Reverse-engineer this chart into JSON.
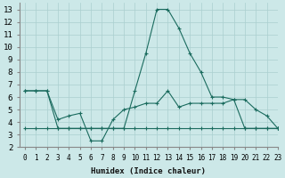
{
  "xlabel": "Humidex (Indice chaleur)",
  "xlim": [
    -0.5,
    23
  ],
  "ylim": [
    2,
    13.5
  ],
  "yticks": [
    2,
    3,
    4,
    5,
    6,
    7,
    8,
    9,
    10,
    11,
    12,
    13
  ],
  "xticks": [
    0,
    1,
    2,
    3,
    4,
    5,
    6,
    7,
    8,
    9,
    10,
    11,
    12,
    13,
    14,
    15,
    16,
    17,
    18,
    19,
    20,
    21,
    22,
    23
  ],
  "bg_color": "#cce8e8",
  "grid_color": "#aacfcf",
  "line_color": "#1a6b5e",
  "lines": [
    {
      "x": [
        0,
        1,
        2,
        3,
        4,
        5,
        6,
        7,
        8,
        9,
        10,
        11,
        12,
        13,
        14,
        15,
        16,
        17,
        18,
        19,
        20,
        21,
        22,
        23
      ],
      "y": [
        6.5,
        6.5,
        6.5,
        3.5,
        3.5,
        3.5,
        3.5,
        3.5,
        3.5,
        3.5,
        6.5,
        9.5,
        13.0,
        13.0,
        11.5,
        9.5,
        8.0,
        6.0,
        6.0,
        5.8,
        3.5,
        3.5,
        3.5,
        3.5
      ]
    },
    {
      "x": [
        0,
        1,
        2,
        3,
        4,
        5,
        6,
        7,
        8,
        9,
        10,
        11,
        12,
        13,
        14,
        15,
        16,
        17,
        18,
        19,
        20,
        21,
        22,
        23
      ],
      "y": [
        6.5,
        6.5,
        6.5,
        4.2,
        4.5,
        4.7,
        2.5,
        2.5,
        4.2,
        5.0,
        5.2,
        5.5,
        5.5,
        6.5,
        5.2,
        5.5,
        5.5,
        5.5,
        5.5,
        5.8,
        5.8,
        5.0,
        4.5,
        3.5
      ]
    },
    {
      "x": [
        0,
        1,
        2,
        3,
        4,
        5,
        6,
        7,
        8,
        9,
        10,
        11,
        12,
        13,
        14,
        15,
        16,
        17,
        18,
        19,
        20,
        21,
        22,
        23
      ],
      "y": [
        3.5,
        3.5,
        3.5,
        3.5,
        3.5,
        3.5,
        3.5,
        3.5,
        3.5,
        3.5,
        3.5,
        3.5,
        3.5,
        3.5,
        3.5,
        3.5,
        3.5,
        3.5,
        3.5,
        3.5,
        3.5,
        3.5,
        3.5,
        3.5
      ]
    }
  ]
}
